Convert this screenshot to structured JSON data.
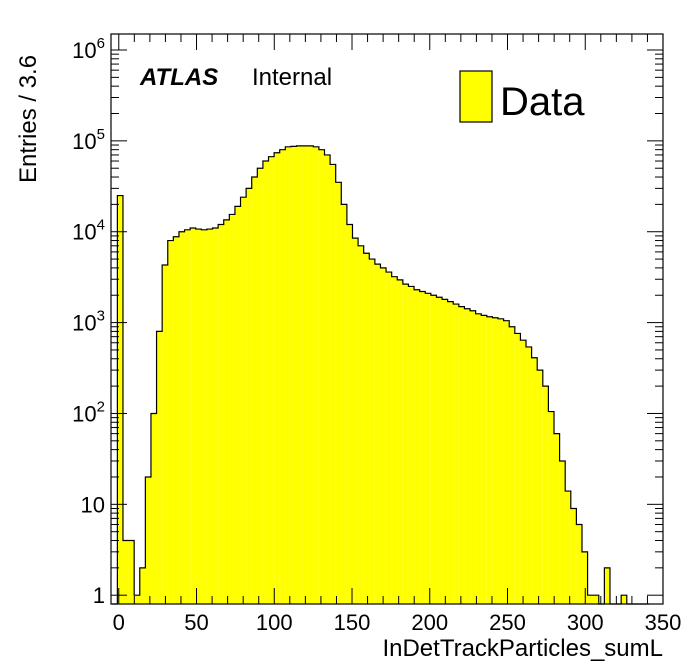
{
  "chart_data": {
    "type": "bar",
    "x": [
      -4.5,
      -0.9,
      2.7,
      6.3,
      9.9,
      13.5,
      17.1,
      20.7,
      24.3,
      27.9,
      31.5,
      35.1,
      38.7,
      42.3,
      45.9,
      49.5,
      53.1,
      56.7,
      60.3,
      63.9,
      67.5,
      71.1,
      74.7,
      78.3,
      81.9,
      85.5,
      89.1,
      92.7,
      96.3,
      99.9,
      103.5,
      107.1,
      110.7,
      114.3,
      117.9,
      121.5,
      125.1,
      128.7,
      132.3,
      135.9,
      139.5,
      143.1,
      146.7,
      150.3,
      153.9,
      157.5,
      161.1,
      164.7,
      168.3,
      171.9,
      175.5,
      179.1,
      182.7,
      186.3,
      189.9,
      193.5,
      197.1,
      200.7,
      204.3,
      207.9,
      211.5,
      215.1,
      218.7,
      222.3,
      225.9,
      229.5,
      233.1,
      236.7,
      240.3,
      243.9,
      247.5,
      251.1,
      254.7,
      258.3,
      261.9,
      265.5,
      269.1,
      272.7,
      276.3,
      279.9,
      283.5,
      287.1,
      290.7,
      294.3,
      297.9,
      301.5,
      305.1,
      308.7,
      312.3,
      315.9,
      319.5,
      323.1,
      326.7,
      330.3,
      333.9,
      337.5
    ],
    "series": [
      {
        "name": "Data",
        "color": "#ffff00",
        "values": [
          0,
          25000,
          4,
          4,
          1,
          2,
          20,
          100,
          800,
          4300,
          8000,
          8800,
          10000,
          10500,
          11000,
          10700,
          10500,
          10700,
          11000,
          12000,
          13500,
          15500,
          19000,
          24000,
          30000,
          40000,
          50000,
          60000,
          67000,
          74000,
          80000,
          86000,
          87000,
          88000,
          88000,
          88000,
          86000,
          80000,
          70000,
          55000,
          35000,
          20000,
          12000,
          8500,
          7000,
          5800,
          5000,
          4400,
          4000,
          3600,
          3200,
          2950,
          2650,
          2500,
          2300,
          2200,
          2100,
          2000,
          1900,
          1800,
          1700,
          1600,
          1500,
          1420,
          1350,
          1250,
          1200,
          1160,
          1130,
          1100,
          1050,
          900,
          760,
          640,
          540,
          410,
          300,
          200,
          105,
          60,
          30,
          14,
          9,
          6,
          3,
          1,
          1,
          0,
          2,
          0,
          0,
          1,
          0,
          0,
          0,
          0
        ]
      }
    ],
    "bin_width": 3.6,
    "xlabel": "InDetTrackParticles_sumL",
    "ylabel": "Entries / 3.6",
    "xlim": [
      -5,
      350
    ],
    "ylim": [
      0.8,
      1500000
    ],
    "y_scale": "log",
    "xticks": [
      "0",
      "50",
      "100",
      "150",
      "200",
      "250",
      "300",
      "350"
    ],
    "xtick_values": [
      0,
      50,
      100,
      150,
      200,
      250,
      300,
      350
    ],
    "ytick_values": [
      1,
      10,
      100,
      1000,
      10000,
      100000,
      1000000
    ],
    "ytick_labels": [
      {
        "base": "1",
        "exp": ""
      },
      {
        "base": "10",
        "exp": ""
      },
      {
        "base": "10",
        "exp": "2"
      },
      {
        "base": "10",
        "exp": "3"
      },
      {
        "base": "10",
        "exp": "4"
      },
      {
        "base": "10",
        "exp": "5"
      },
      {
        "base": "10",
        "exp": "6"
      }
    ],
    "legend": {
      "label": "Data",
      "position": "top-right"
    },
    "label": {
      "experiment": "ATLAS",
      "status": "Internal"
    },
    "grid": false
  }
}
